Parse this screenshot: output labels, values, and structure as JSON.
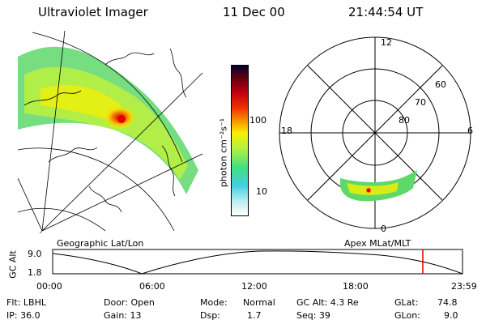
{
  "header": {
    "instrument": "Ultraviolet Imager",
    "date": "11 Dec 00",
    "time": "21:44:54 UT"
  },
  "colorbar": {
    "unit_label": "photon cm⁻²s⁻¹",
    "tick_100": "100",
    "tick_10": "10",
    "stops": [
      "#ffffff",
      "#b8ecf0",
      "#40d0e0",
      "#40e080",
      "#b8f040",
      "#f8f000",
      "#f8a000",
      "#f03000",
      "#c00010",
      "#600010",
      "#000030"
    ]
  },
  "panels": {
    "left_label": "Geographic Lat/Lon",
    "right_label": "Apex MLat/MLT"
  },
  "polar": {
    "mlt_top": "12",
    "mlt_right": "6",
    "mlt_bottom": "0",
    "mlt_left": "18",
    "lat_60": "60",
    "lat_70": "70",
    "lat_80": "80"
  },
  "altitude_strip": {
    "ylabel": "GC Alt",
    "y_top": "9.0",
    "y_bottom": "1.8",
    "x_ticks": [
      "00:00",
      "06:00",
      "12:00",
      "18:00",
      "23:59"
    ],
    "marker_color": "#e00000"
  },
  "info": {
    "filter": "Flt: LBHL",
    "ip": "IP: 36.0",
    "door": "Door: Open",
    "gain": "Gain: 13",
    "mode_label": "Mode:",
    "mode_value": "Normal",
    "dsp_label": "Dsp:",
    "dsp_value": "1.7",
    "gcalt": "GC Alt: 4.3 Re",
    "seq": "Seq: 39",
    "glat_label": "GLat:",
    "glat_value": "74.8",
    "glon_label": "GLon:",
    "glon_value": "9.0"
  }
}
